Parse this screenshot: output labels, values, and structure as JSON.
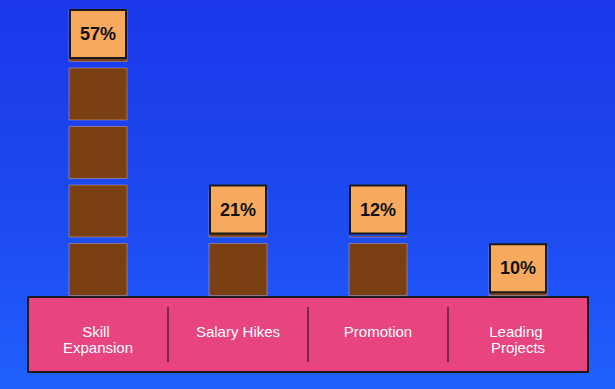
{
  "chart_data": {
    "type": "bar",
    "categories": [
      "Skill Expansion",
      "Salary Hikes",
      "Promotion",
      "Leading Projects"
    ],
    "values": [
      57,
      21,
      12,
      10
    ],
    "value_labels": [
      "57%",
      "21%",
      "12%",
      "10%"
    ],
    "color": "#7b3f14",
    "data_labels": true,
    "tick_labels": "x",
    "grid": false
  }
}
